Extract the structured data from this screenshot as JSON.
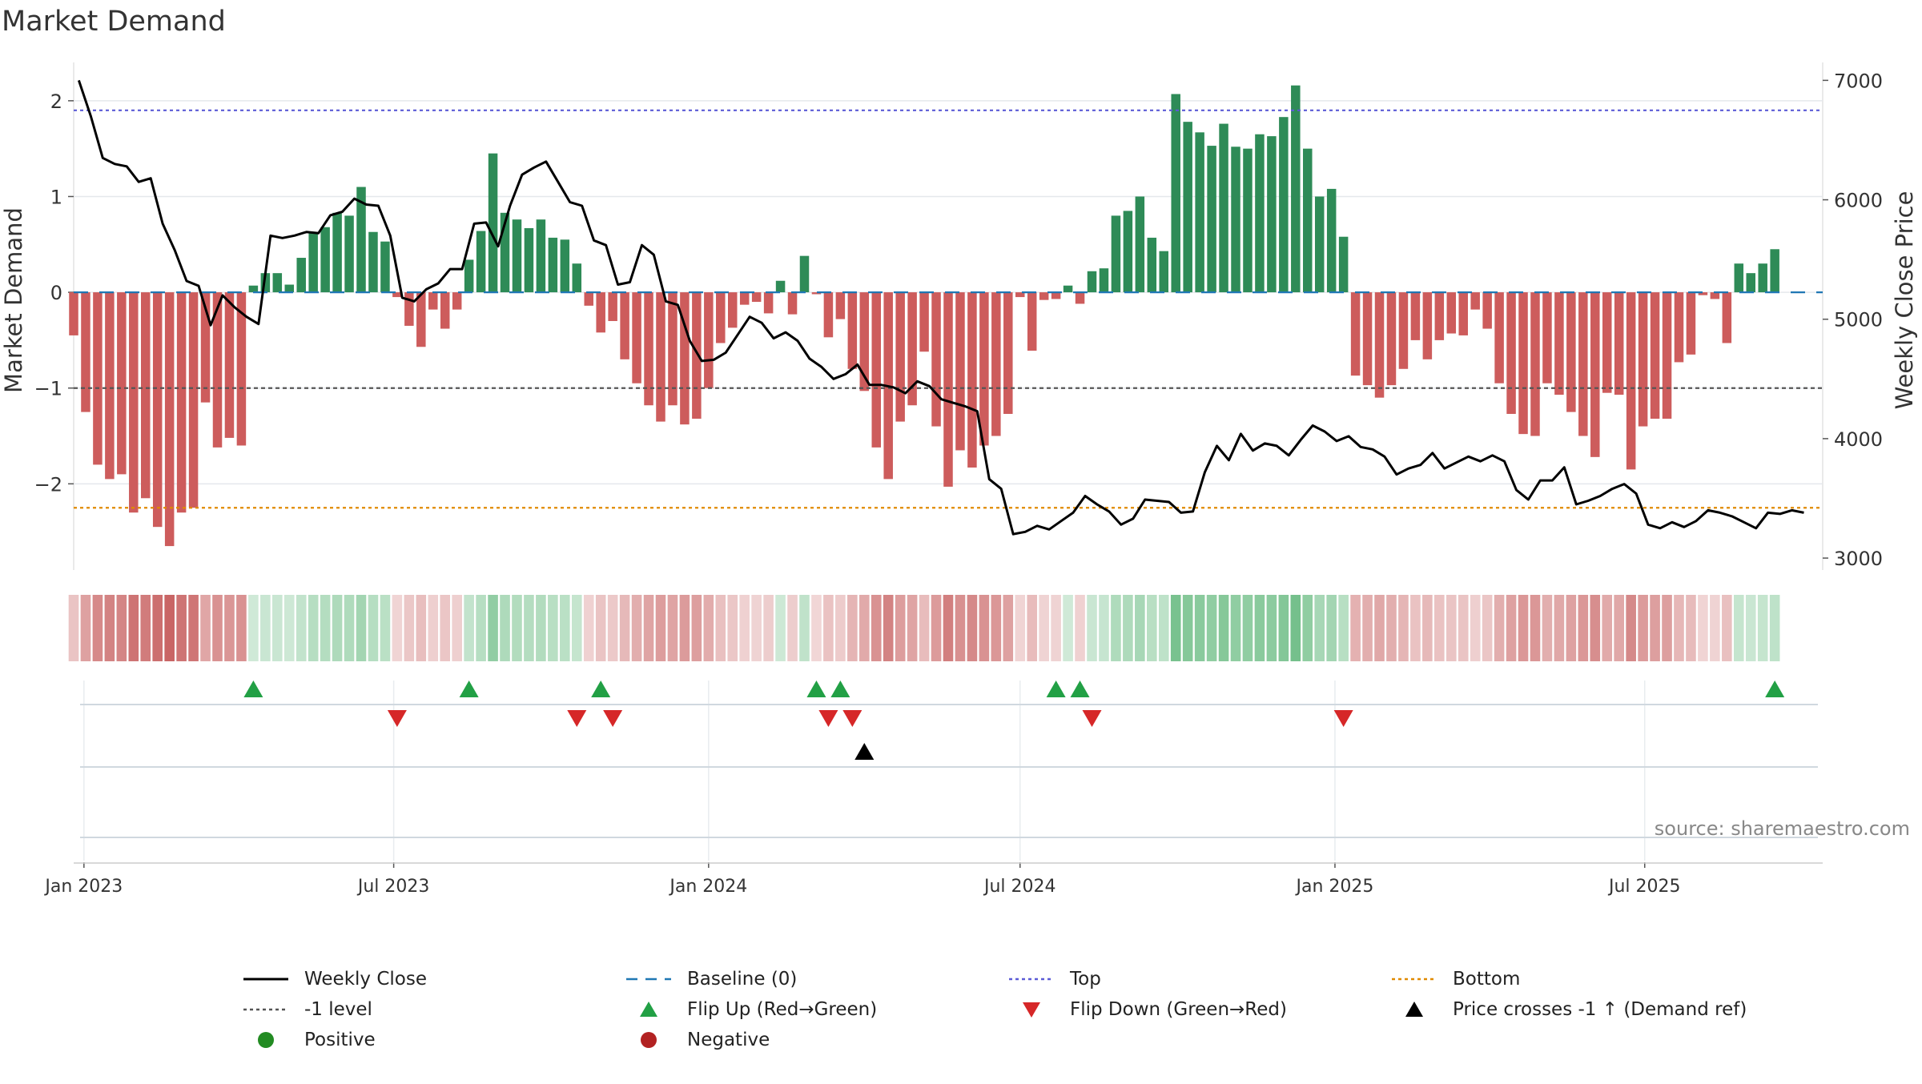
{
  "chart_data": {
    "type": "bar",
    "title": "Market Demand",
    "ylabel": "Market Demand",
    "y2label": "Weekly Close Price",
    "ylim": [
      -2.9,
      2.4
    ],
    "y2lim": [
      2900,
      7150
    ],
    "yticks": [
      2,
      1,
      0,
      -1,
      -2
    ],
    "ytick_labels": [
      "2",
      "1",
      "0",
      "−1",
      "−2"
    ],
    "y2ticks": [
      7000,
      6000,
      5000,
      4000,
      3000
    ],
    "y2tick_labels": [
      "7000",
      "6000",
      "5000",
      "4000",
      "3000"
    ],
    "x_start": "2022-12-26",
    "x_end": "2025-10-13",
    "xticks": [
      {
        "date": "2023-01-01",
        "label": "Jan 2023"
      },
      {
        "date": "2023-07-01",
        "label": "Jul 2023"
      },
      {
        "date": "2024-01-01",
        "label": "Jan 2024"
      },
      {
        "date": "2024-07-01",
        "label": "Jul 2024"
      },
      {
        "date": "2025-01-01",
        "label": "Jan 2025"
      },
      {
        "date": "2025-07-01",
        "label": "Jul 2025"
      }
    ],
    "first_week": "2022-12-26",
    "demand": [
      -0.45,
      -1.25,
      -1.8,
      -1.95,
      -1.9,
      -2.3,
      -2.15,
      -2.45,
      -2.65,
      -2.3,
      -2.25,
      -1.15,
      -1.62,
      -1.52,
      -1.6,
      0.07,
      0.2,
      0.2,
      0.08,
      0.36,
      0.62,
      0.68,
      0.83,
      0.8,
      1.1,
      0.63,
      0.53,
      -0.05,
      -0.35,
      -0.57,
      -0.18,
      -0.38,
      -0.18,
      0.34,
      0.64,
      1.45,
      0.83,
      0.76,
      0.67,
      0.76,
      0.57,
      0.55,
      0.3,
      -0.14,
      -0.42,
      -0.3,
      -0.7,
      -0.95,
      -1.18,
      -1.35,
      -1.18,
      -1.38,
      -1.32,
      -1.0,
      -0.53,
      -0.37,
      -0.13,
      -0.1,
      -0.22,
      0.12,
      -0.23,
      0.38,
      -0.02,
      -0.47,
      -0.28,
      -0.8,
      -1.03,
      -1.62,
      -1.95,
      -1.35,
      -1.18,
      -0.62,
      -1.4,
      -2.03,
      -1.65,
      -1.83,
      -1.6,
      -1.5,
      -1.27,
      -0.05,
      -0.61,
      -0.08,
      -0.07,
      0.07,
      -0.12,
      0.22,
      0.25,
      0.8,
      0.85,
      1.0,
      0.57,
      0.43,
      2.07,
      1.78,
      1.67,
      1.53,
      1.76,
      1.52,
      1.5,
      1.65,
      1.63,
      1.83,
      2.16,
      1.5,
      1.0,
      1.08,
      0.58,
      -0.87,
      -0.97,
      -1.1,
      -0.97,
      -0.8,
      -0.5,
      -0.7,
      -0.5,
      -0.43,
      -0.45,
      -0.18,
      -0.38,
      -0.95,
      -1.27,
      -1.48,
      -1.5,
      -0.95,
      -1.07,
      -1.25,
      -1.5,
      -1.72,
      -1.05,
      -1.07,
      -1.85,
      -1.4,
      -1.32,
      -1.32,
      -0.73,
      -0.65,
      -0.03,
      -0.07,
      -0.53,
      0.3,
      0.2,
      0.3,
      0.45
    ],
    "price_note": "first value aligned with x_start, weekly thereafter",
    "price": [
      7000,
      6700,
      6350,
      6300,
      6280,
      6150,
      6180,
      5800,
      5580,
      5320,
      5280,
      4950,
      5200,
      5100,
      5020,
      4960,
      5700,
      5680,
      5700,
      5730,
      5720,
      5870,
      5900,
      6010,
      5960,
      5950,
      5700,
      5180,
      5150,
      5250,
      5300,
      5420,
      5420,
      5800,
      5810,
      5610,
      5950,
      6210,
      6270,
      6320,
      6150,
      5980,
      5950,
      5660,
      5620,
      5290,
      5310,
      5620,
      5540,
      5150,
      5120,
      4820,
      4650,
      4660,
      4720,
      4870,
      5020,
      4970,
      4840,
      4890,
      4820,
      4670,
      4600,
      4500,
      4540,
      4620,
      4450,
      4450,
      4430,
      4380,
      4480,
      4440,
      4330,
      4300,
      4270,
      4230,
      3660,
      3580,
      3200,
      3220,
      3270,
      3240,
      3310,
      3380,
      3520,
      3450,
      3390,
      3280,
      3330,
      3490,
      3480,
      3470,
      3380,
      3390,
      3720,
      3940,
      3820,
      4040,
      3900,
      3960,
      3940,
      3860,
      3990,
      4110,
      4060,
      3980,
      4020,
      3930,
      3910,
      3850,
      3700,
      3750,
      3780,
      3880,
      3750,
      3800,
      3850,
      3810,
      3860,
      3810,
      3570,
      3490,
      3650,
      3650,
      3760,
      3450,
      3480,
      3520,
      3580,
      3620,
      3540,
      3280,
      3250,
      3300,
      3260,
      3310,
      3400,
      3380,
      3350,
      3300,
      3250,
      3380,
      3370,
      3400,
      3380
    ],
    "heatmap_values": [
      -0.45,
      -1.25,
      -1.8,
      -1.95,
      -1.9,
      -2.3,
      -2.15,
      -2.45,
      -2.65,
      -2.3,
      -2.25,
      -1.15,
      -1.62,
      -1.52,
      -1.6,
      0.07,
      0.2,
      0.2,
      0.08,
      0.36,
      0.62,
      0.68,
      0.83,
      0.8,
      1.1,
      0.63,
      0.53,
      -0.05,
      -0.35,
      -0.57,
      -0.18,
      -0.38,
      -0.18,
      0.34,
      0.64,
      1.45,
      0.83,
      0.76,
      0.67,
      0.76,
      0.57,
      0.55,
      0.3,
      -0.14,
      -0.42,
      -0.3,
      -0.7,
      -0.95,
      -1.18,
      -1.35,
      -1.18,
      -1.38,
      -1.32,
      -1.0,
      -0.53,
      -0.37,
      -0.13,
      -0.1,
      -0.22,
      0.12,
      -0.23,
      0.38,
      -0.02,
      -0.47,
      -0.28,
      -0.8,
      -1.03,
      -1.62,
      -1.95,
      -1.35,
      -1.18,
      -0.62,
      -1.4,
      -2.03,
      -1.65,
      -1.83,
      -1.6,
      -1.5,
      -1.27,
      -0.05,
      -0.61,
      -0.08,
      -0.07,
      0.07,
      -0.12,
      0.22,
      0.25,
      0.8,
      0.85,
      1.0,
      0.57,
      0.43,
      2.07,
      1.78,
      1.67,
      1.53,
      1.76,
      1.52,
      1.5,
      1.65,
      1.63,
      1.83,
      2.16,
      1.5,
      1.0,
      1.08,
      0.58,
      -0.87,
      -0.97,
      -1.1,
      -0.97,
      -0.8,
      -0.5,
      -0.7,
      -0.5,
      -0.43,
      -0.45,
      -0.18,
      -0.38,
      -0.95,
      -1.27,
      -1.48,
      -1.5,
      -0.95,
      -1.07,
      -1.25,
      -1.5,
      -1.72,
      -1.05,
      -1.07,
      -1.85,
      -1.4,
      -1.32,
      -1.32,
      -0.73,
      -0.65,
      -0.03,
      -0.07,
      -0.53,
      0.3,
      0.2,
      0.3,
      0.45
    ],
    "reference_lines": [
      {
        "name": "Baseline (0)",
        "value": 0,
        "color": "#1f77b4"
      },
      {
        "name": "Top",
        "value": 1.9,
        "color": "#5b5bd6"
      },
      {
        "name": "-1 level",
        "value": -1,
        "color": "#555555"
      },
      {
        "name": "Bottom",
        "value": -2.25,
        "color": "#e08a00"
      }
    ],
    "flip_up_dates": [
      "2023-04-10",
      "2023-08-14",
      "2023-10-30",
      "2024-03-04",
      "2024-03-18",
      "2024-07-22",
      "2024-08-05",
      "2025-09-15"
    ],
    "flip_down_dates": [
      "2023-07-03",
      "2023-10-16",
      "2023-11-06",
      "2024-03-11",
      "2024-03-25",
      "2024-08-12",
      "2025-01-06"
    ],
    "price_cross_dates": [
      "2024-04-01"
    ],
    "colors": {
      "positive": "#2e8b57",
      "negative": "#cd5c5c",
      "price": "#000000",
      "flip_up": "#22a045",
      "flip_down": "#d62728",
      "cross": "#000000",
      "positive_dot": "#228b22",
      "negative_dot": "#b22222",
      "grid": "#e5e8ec",
      "strip_line": "#d0d8df"
    },
    "legend": [
      {
        "key": "weekly-close",
        "label": "Weekly Close",
        "marker": "solid-line",
        "color": "#000000"
      },
      {
        "key": "baseline",
        "label": "Baseline (0)",
        "marker": "dash-line",
        "color": "#1f77b4"
      },
      {
        "key": "top",
        "label": "Top",
        "marker": "dot-line",
        "color": "#5b5bd6"
      },
      {
        "key": "bottom",
        "label": "Bottom",
        "marker": "dot-line",
        "color": "#e08a00"
      },
      {
        "key": "minus-one-level",
        "label": "-1 level",
        "marker": "dot-line",
        "color": "#555555"
      },
      {
        "key": "flip-up",
        "label": "Flip Up (Red→Green)",
        "marker": "triangle-up",
        "color": "#22a045"
      },
      {
        "key": "flip-down",
        "label": "Flip Down (Green→Red)",
        "marker": "triangle-down",
        "color": "#d62728"
      },
      {
        "key": "price-cross",
        "label": "Price crosses -1 ↑ (Demand ref)",
        "marker": "triangle-up",
        "color": "#000000"
      },
      {
        "key": "positive",
        "label": "Positive",
        "marker": "circle",
        "color": "#228b22"
      },
      {
        "key": "negative",
        "label": "Negative",
        "marker": "circle",
        "color": "#b22222"
      }
    ],
    "source": "source: sharemaestro.com"
  }
}
